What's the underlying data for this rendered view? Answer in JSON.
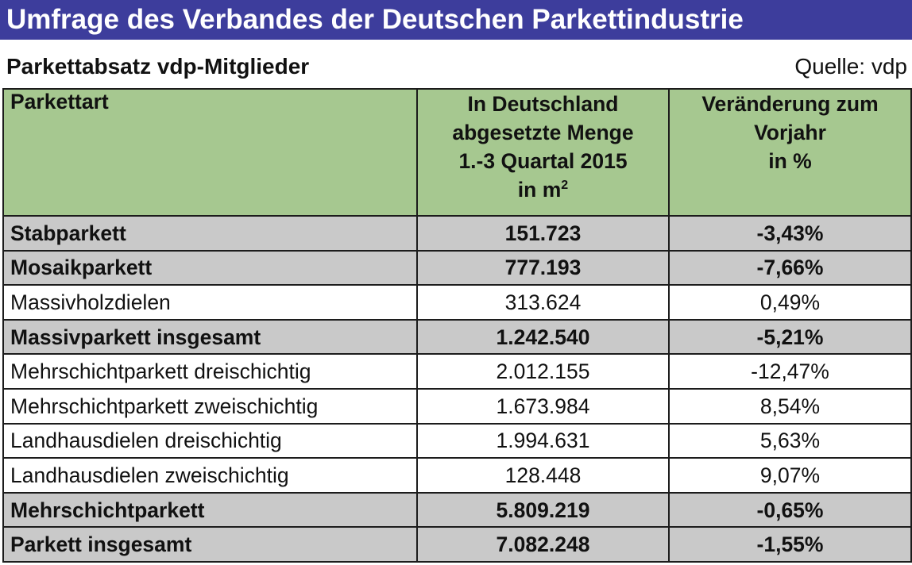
{
  "banner": {
    "title": "Umfrage des Verbandes der Deutschen Parkettindustrie"
  },
  "subtitle": "Parkettabsatz vdp-Mitglieder",
  "source": "Quelle: vdp",
  "colors": {
    "banner": "#3d3d9c",
    "header": "#a6c890",
    "highlight_row": "#c9c9c9"
  },
  "chart_data": {
    "type": "table",
    "columns": [
      "Parkettart",
      "In Deutschland abgesetzte Menge 1.-3 Quartal 2015 in m²",
      "Veränderung zum Vorjahr in %"
    ],
    "header": {
      "col1": "Parkettart",
      "col2_lines": [
        "In Deutschland",
        "abgesetzte Menge",
        "1.-3 Quartal 2015",
        "in m"
      ],
      "col2_sup": "2",
      "col3_lines": [
        "Veränderung zum",
        "Vorjahr",
        "in %"
      ]
    },
    "rows": [
      {
        "name": "Stabparkett",
        "menge": "151.723",
        "change": "-3,43%",
        "bold": true
      },
      {
        "name": "Mosaikparkett",
        "menge": "777.193",
        "change": "-7,66%",
        "bold": true
      },
      {
        "name": "Massivholzdielen",
        "menge": "313.624",
        "change": "0,49%",
        "bold": false
      },
      {
        "name": "Massivparkett insgesamt",
        "menge": "1.242.540",
        "change": "-5,21%",
        "bold": true
      },
      {
        "name": "Mehrschichtparkett dreischichtig",
        "menge": "2.012.155",
        "change": "-12,47%",
        "bold": false
      },
      {
        "name": "Mehrschichtparkett zweischichtig",
        "menge": "1.673.984",
        "change": "8,54%",
        "bold": false
      },
      {
        "name": "Landhausdielen dreischichtig",
        "menge": "1.994.631",
        "change": "5,63%",
        "bold": false
      },
      {
        "name": "Landhausdielen zweischichtig",
        "menge": "128.448",
        "change": "9,07%",
        "bold": false
      },
      {
        "name": "Mehrschichtparkett",
        "menge": "5.809.219",
        "change": "-0,65%",
        "bold": true
      },
      {
        "name": "Parkett insgesamt",
        "menge": "7.082.248",
        "change": "-1,55%",
        "bold": true
      }
    ]
  }
}
